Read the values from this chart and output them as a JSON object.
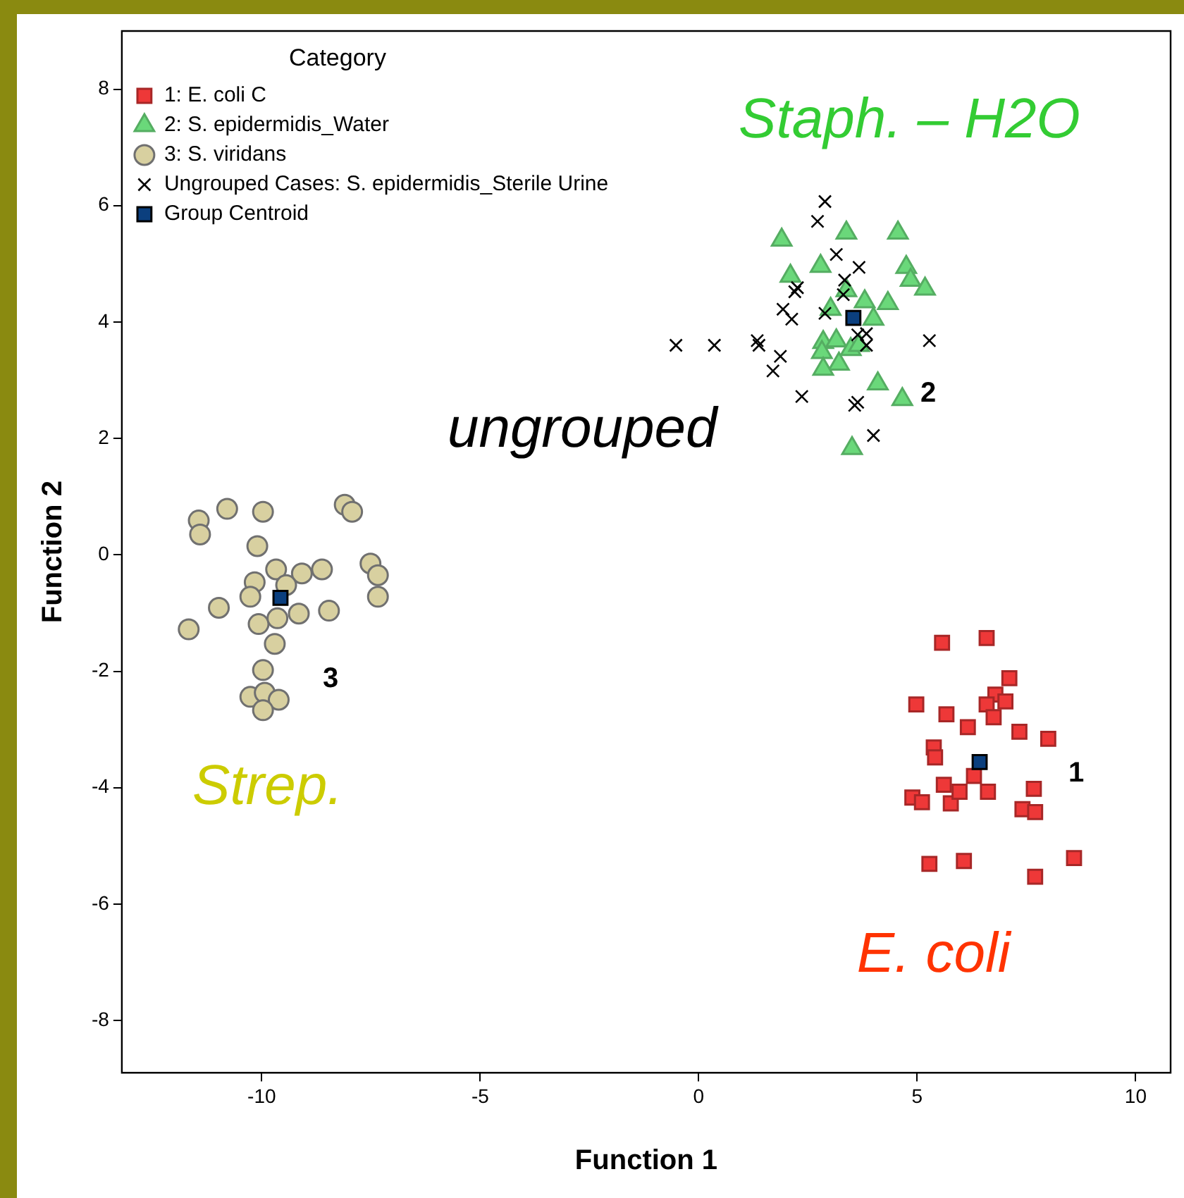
{
  "chart_data": {
    "type": "scatter",
    "xlabel": "Function 1",
    "ylabel": "Function 2",
    "legend_title": "Category",
    "legend": "top left",
    "grid": false,
    "xlim": [
      -13.2,
      10.8
    ],
    "xticks": [
      -10,
      -5,
      0,
      5,
      10
    ],
    "ylim": [
      -8.9,
      9
    ],
    "yticks": [
      -8,
      -6,
      -4,
      -2,
      0,
      2,
      4,
      6,
      8
    ],
    "series": [
      {
        "name": "1: E. coli C",
        "color": "#ee3838",
        "marker": "square",
        "x": [
          5.57,
          6.59,
          7.11,
          4.98,
          6.79,
          7.02,
          6.59,
          5.67,
          6.75,
          6.16,
          7.34,
          8.0,
          5.38,
          5.41,
          6.3,
          5.61,
          4.89,
          5.11,
          5.77,
          5.97,
          6.62,
          7.67,
          7.41,
          7.7,
          5.28,
          6.07,
          8.59,
          7.7
        ],
        "values": [
          -1.51,
          -1.43,
          -2.12,
          -2.57,
          -2.4,
          -2.52,
          -2.57,
          -2.74,
          -2.79,
          -2.96,
          -3.04,
          -3.16,
          -3.31,
          -3.48,
          -3.8,
          -3.95,
          -4.17,
          -4.25,
          -4.27,
          -4.07,
          -4.07,
          -4.02,
          -4.37,
          -4.42,
          -5.31,
          -5.26,
          -5.21,
          -5.53
        ]
      },
      {
        "name": "2: S. epidermidis_Water",
        "color": "#6ad87a",
        "marker": "triangle",
        "x": [
          1.9,
          3.38,
          4.56,
          2.1,
          2.79,
          4.75,
          4.85,
          5.18,
          4.33,
          3.38,
          3.8,
          4.0,
          2.85,
          3.15,
          3.48,
          2.82,
          3.21,
          2.85,
          3.67,
          4.1,
          4.66,
          3.51,
          3.02
        ],
        "values": [
          5.41,
          5.53,
          5.53,
          4.79,
          4.96,
          4.94,
          4.72,
          4.57,
          4.32,
          4.54,
          4.35,
          4.05,
          3.65,
          3.68,
          3.53,
          3.48,
          3.28,
          3.19,
          3.6,
          2.94,
          2.67,
          1.83,
          4.22
        ]
      },
      {
        "name": "3: S. viridans",
        "color": "#d8d0a0",
        "marker": "circle",
        "x": [
          -11.44,
          -11.41,
          -10.79,
          -9.97,
          -8.1,
          -7.93,
          -10.1,
          -9.67,
          -9.08,
          -8.62,
          -7.51,
          -7.34,
          -7.34,
          -10.16,
          -10.26,
          -9.44,
          -10.98,
          -11.67,
          -10.07,
          -9.64,
          -9.15,
          -8.46,
          -9.7,
          -9.97,
          -10.26,
          -9.93,
          -9.61,
          -9.97
        ],
        "values": [
          0.59,
          0.35,
          0.79,
          0.74,
          0.86,
          0.74,
          0.15,
          -0.25,
          -0.32,
          -0.25,
          -0.15,
          -0.35,
          -0.72,
          -0.47,
          -0.72,
          -0.52,
          -0.91,
          -1.28,
          -1.19,
          -1.09,
          -1.01,
          -0.96,
          -1.53,
          -1.98,
          -2.44,
          -2.37,
          -2.49,
          -2.67
        ]
      },
      {
        "name": "Ungrouped Cases: S. epidermidis_Sterile Urine",
        "color": "#000000",
        "marker": "cross",
        "x": [
          2.89,
          2.72,
          3.15,
          3.67,
          2.26,
          2.2,
          3.34,
          1.93,
          2.13,
          2.89,
          3.31,
          -0.52,
          0.36,
          1.34,
          1.38,
          1.87,
          1.7,
          2.36,
          3.64,
          3.57,
          4.0,
          5.28,
          3.84,
          3.64,
          3.84
        ],
        "values": [
          6.07,
          5.73,
          5.16,
          4.94,
          4.59,
          4.52,
          4.72,
          4.22,
          4.05,
          4.15,
          4.47,
          3.6,
          3.6,
          3.68,
          3.6,
          3.41,
          3.16,
          2.72,
          2.62,
          2.57,
          2.05,
          3.68,
          3.8,
          3.78,
          3.6
        ]
      },
      {
        "name": "Group Centroid",
        "color": "#0b3f7e",
        "marker": "square",
        "x": [
          6.43,
          3.54,
          -9.57
        ],
        "values": [
          -3.56,
          4.07,
          -0.74
        ]
      }
    ],
    "annotations": [
      "Staph. – H2O",
      "ungrouped",
      "Strep.",
      "E. coli",
      "1",
      "2",
      "3"
    ]
  }
}
